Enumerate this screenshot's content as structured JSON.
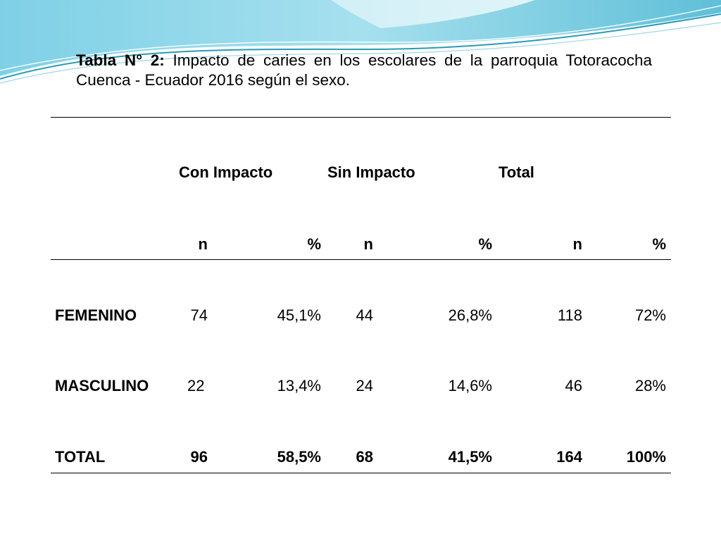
{
  "caption": {
    "label": "Tabla  N° 2:",
    "text": " Impacto de caries en los escolares de la parroquia Totoracocha Cuenca - Ecuador 2016 según el sexo."
  },
  "table": {
    "group_headers": [
      "Con Impacto",
      "Sin Impacto",
      "Total"
    ],
    "sub_headers": [
      "n",
      "%",
      "n",
      "%",
      "n",
      "%"
    ],
    "rows": [
      {
        "label": "FEMENINO",
        "values": [
          "74",
          "45,1%",
          "44",
          "26,8%",
          "118",
          "72%"
        ]
      },
      {
        "label": "MASCULINO",
        "values": [
          "22",
          "13,4%",
          "24",
          "14,6%",
          "46",
          "28%"
        ]
      },
      {
        "label": "TOTAL",
        "values": [
          "96",
          "58,5%",
          "68",
          "41,5%",
          "164",
          "100%"
        ]
      }
    ]
  }
}
